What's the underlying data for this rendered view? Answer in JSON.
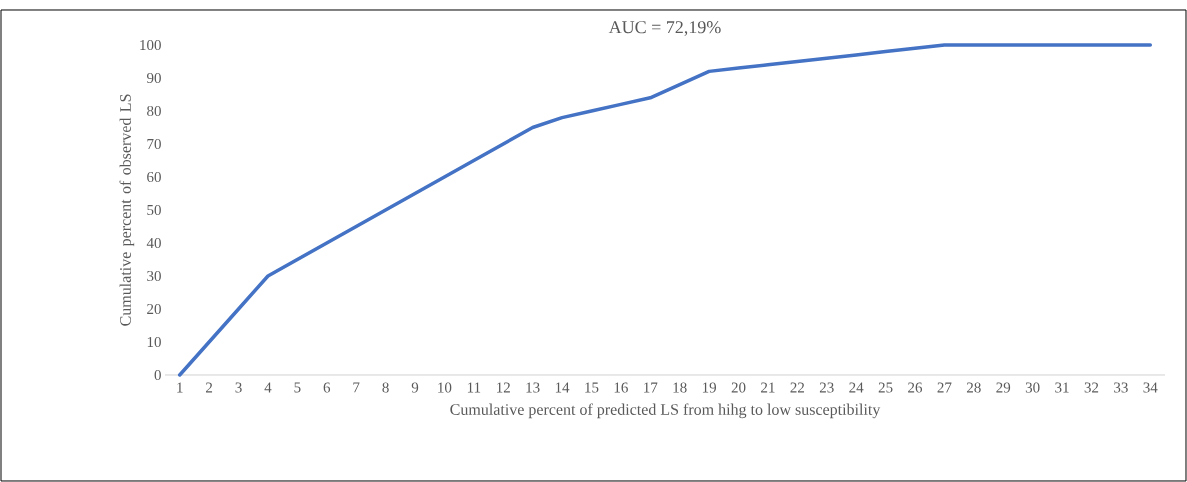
{
  "chart_data": {
    "type": "line",
    "annotations": [
      "AUC = 72,19%"
    ],
    "xlabel": "Cumulative percent of predicted LS from hihg to low susceptibility",
    "ylabel": "Cumulative percent of observed LS",
    "categories": [
      "1",
      "2",
      "3",
      "4",
      "5",
      "6",
      "7",
      "8",
      "9",
      "10",
      "11",
      "12",
      "13",
      "14",
      "15",
      "16",
      "17",
      "18",
      "19",
      "20",
      "21",
      "22",
      "23",
      "24",
      "25",
      "26",
      "27",
      "28",
      "29",
      "30",
      "31",
      "32",
      "33",
      "34"
    ],
    "series": [
      {
        "color": "#4472c4",
        "values": [
          0,
          10,
          20,
          30,
          35,
          40,
          45,
          50,
          55,
          60,
          65,
          70,
          75,
          78,
          80,
          82,
          84,
          88,
          92,
          93,
          94,
          95,
          96,
          97,
          98,
          99,
          100,
          100,
          100,
          100,
          100,
          100,
          100,
          100
        ]
      }
    ],
    "ylim": [
      0,
      100
    ],
    "yticks": [
      0,
      10,
      20,
      30,
      40,
      50,
      60,
      70,
      80,
      90,
      100
    ],
    "marker": "none",
    "line_style": "solid"
  }
}
